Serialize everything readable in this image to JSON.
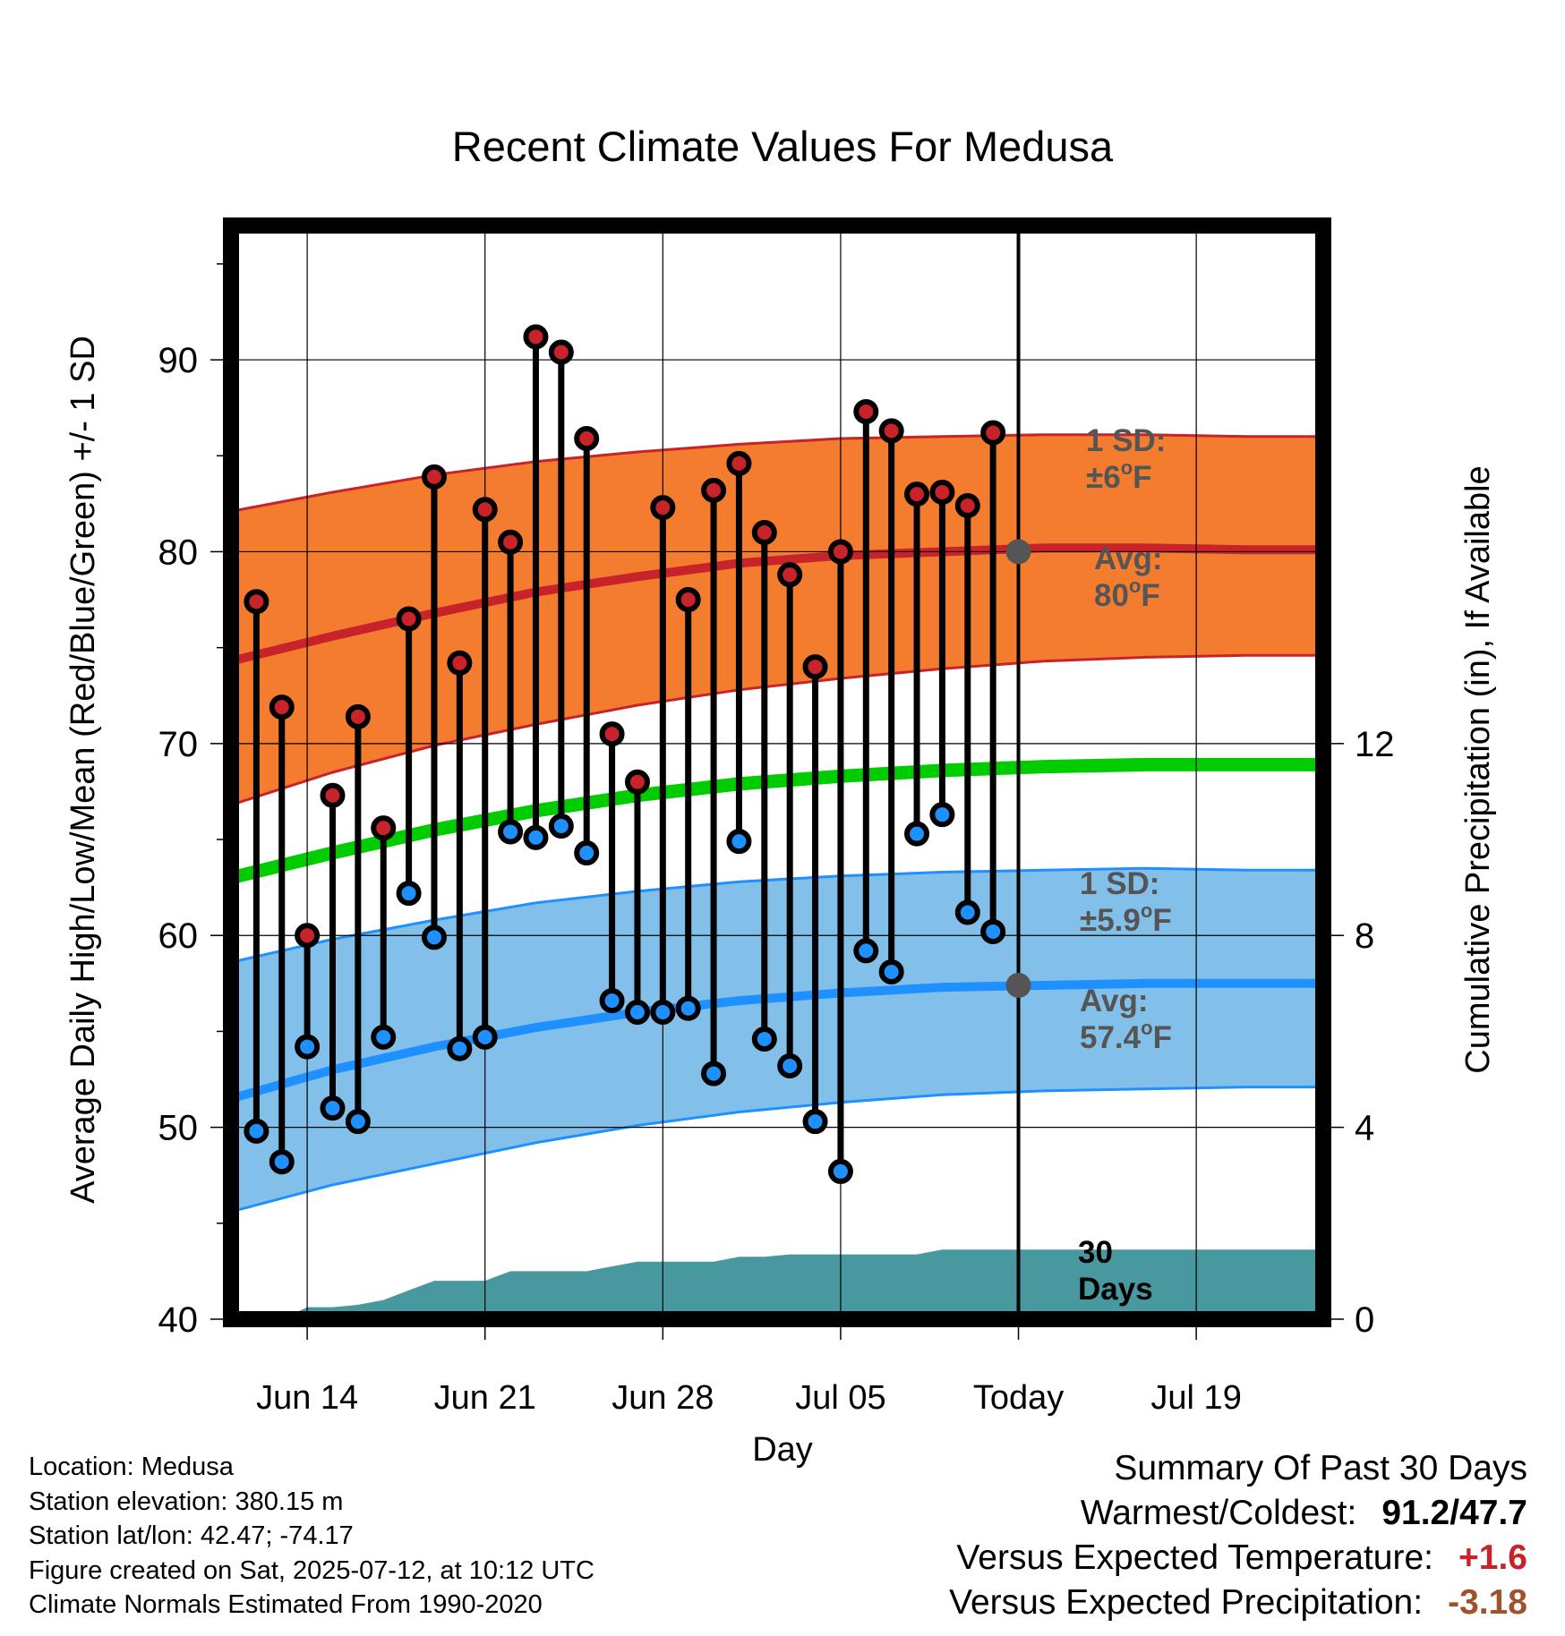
{
  "chart_data": {
    "type": "line",
    "title": "Recent Climate Values For Medusa",
    "xlabel": "Day",
    "ylabel": "Average Daily High/Low/Mean (Red/Blue/Green) +/- 1 SD",
    "y2label": "Cumulative Precipitation (in), If Available",
    "xlim": [
      0,
      43
    ],
    "ylim": [
      40,
      97
    ],
    "y2lim": [
      0,
      22.8
    ],
    "x_ticks": [
      {
        "x": 3,
        "label": "Jun 14"
      },
      {
        "x": 10,
        "label": "Jun 21"
      },
      {
        "x": 17,
        "label": "Jun 28"
      },
      {
        "x": 24,
        "label": "Jul 05"
      },
      {
        "x": 31,
        "label": "Today"
      },
      {
        "x": 38,
        "label": "Jul 19"
      }
    ],
    "y_ticks": [
      40,
      50,
      60,
      70,
      80,
      90
    ],
    "y2_ticks": [
      0,
      4,
      8,
      12
    ],
    "today_x": 31,
    "today_label": [
      "30",
      "Days"
    ],
    "daily": {
      "x": [
        1,
        2,
        3,
        4,
        5,
        6,
        7,
        8,
        9,
        10,
        11,
        12,
        13,
        14,
        15,
        16,
        17,
        18,
        19,
        20,
        21,
        22,
        23,
        24,
        25,
        26,
        27,
        28,
        29,
        30
      ],
      "high": [
        77.4,
        71.9,
        60.0,
        67.3,
        71.4,
        65.6,
        76.5,
        83.9,
        74.2,
        82.2,
        80.5,
        91.2,
        90.4,
        85.9,
        70.5,
        68.0,
        82.3,
        77.5,
        83.2,
        84.6,
        81.0,
        78.8,
        74.0,
        80.0,
        87.3,
        86.3,
        83.0,
        83.1,
        82.4,
        86.2
      ],
      "low": [
        49.8,
        48.2,
        54.2,
        51.0,
        50.3,
        54.7,
        62.2,
        59.9,
        54.1,
        54.7,
        65.4,
        65.1,
        65.7,
        64.3,
        56.6,
        56.0,
        56.0,
        56.2,
        52.8,
        64.9,
        54.6,
        53.2,
        50.3,
        47.7,
        59.2,
        58.1,
        65.3,
        66.3,
        61.2,
        60.2
      ]
    },
    "normals": {
      "x": [
        0,
        4,
        8,
        12,
        16,
        20,
        24,
        28,
        32,
        36,
        40,
        43
      ],
      "high_avg": [
        74.3,
        75.6,
        76.8,
        77.9,
        78.7,
        79.4,
        79.8,
        80.0,
        80.2,
        80.2,
        80.1,
        80.1
      ],
      "high_sd_upper": [
        82.1,
        83.1,
        84.0,
        84.7,
        85.2,
        85.6,
        85.9,
        86.0,
        86.1,
        86.1,
        86.0,
        86.0
      ],
      "high_sd_lower": [
        66.8,
        68.5,
        69.9,
        71.0,
        72.0,
        72.8,
        73.4,
        73.9,
        74.3,
        74.5,
        74.6,
        74.6
      ],
      "mean_avg": [
        63.0,
        64.3,
        65.5,
        66.5,
        67.3,
        67.9,
        68.3,
        68.6,
        68.8,
        68.9,
        68.9,
        68.9
      ],
      "low_avg": [
        51.5,
        53.0,
        54.2,
        55.2,
        56.0,
        56.6,
        57.0,
        57.3,
        57.4,
        57.5,
        57.5,
        57.5
      ],
      "low_sd_upper": [
        58.6,
        59.8,
        60.8,
        61.7,
        62.3,
        62.8,
        63.1,
        63.3,
        63.4,
        63.5,
        63.4,
        63.4
      ],
      "low_sd_lower": [
        45.6,
        47.0,
        48.1,
        49.2,
        50.1,
        50.8,
        51.3,
        51.7,
        51.9,
        52.0,
        52.1,
        52.1
      ]
    },
    "precip": {
      "x": [
        0,
        2,
        3,
        4,
        5,
        6,
        7,
        8,
        9,
        10,
        11,
        12,
        13,
        14,
        15,
        16,
        17,
        18,
        19,
        20,
        21,
        22,
        23,
        24,
        25,
        26,
        27,
        28,
        29,
        30,
        31,
        43
      ],
      "cumulative": [
        0,
        0,
        0.25,
        0.25,
        0.3,
        0.4,
        0.6,
        0.8,
        0.8,
        0.8,
        1.0,
        1.0,
        1.0,
        1.0,
        1.1,
        1.2,
        1.2,
        1.2,
        1.2,
        1.3,
        1.3,
        1.35,
        1.35,
        1.35,
        1.35,
        1.35,
        1.35,
        1.45,
        1.45,
        1.45,
        1.45,
        1.45
      ]
    },
    "annotations": {
      "high_sd": [
        "1 SD:",
        "±6",
        "o",
        "F"
      ],
      "high_avg": [
        "Avg:",
        "80",
        "o",
        "F"
      ],
      "low_sd": [
        "1 SD:",
        "±5.9",
        "o",
        "F"
      ],
      "low_avg": [
        "Avg:",
        "57.4",
        "o",
        "F"
      ]
    },
    "colors": {
      "high": "#c8222a",
      "low": "#1e90ff",
      "mean": "#00cc00",
      "high_band": "#f47c2f",
      "low_band": "#82c0ea",
      "precip": "#48999f",
      "marker_today": "#555555",
      "annotation_text": "#555555"
    }
  },
  "info": {
    "location": "Location: Medusa",
    "elevation": "Station elevation: 380.15 m",
    "latlon": "Station lat/lon: 42.47; -74.17",
    "created": "Figure created on Sat, 2025-07-12, at 10:12 UTC",
    "normals": "Climate Normals Estimated From 1990-2020"
  },
  "summary": {
    "title": "Summary Of Past 30 Days",
    "warmest_label": "Warmest/Coldest:",
    "warmest_value": "91.2/47.7",
    "temp_label": "Versus Expected Temperature:",
    "temp_value": "+1.6",
    "temp_color": "#c8222a",
    "precip_label": "Versus Expected Precipitation:",
    "precip_value": "-3.18",
    "precip_color": "#a0522d"
  }
}
